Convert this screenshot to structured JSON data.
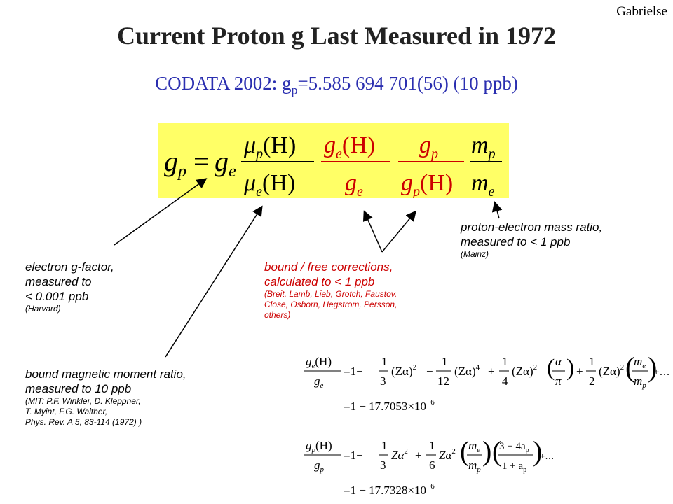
{
  "author": "Gabrielse",
  "title": "Current Proton g Last Measured in 1972",
  "codata": {
    "prefix": "CODATA 2002: g",
    "sub": "p",
    "value": "=5.585 694 701(56)  (10 ppb)"
  },
  "colors": {
    "codata": "#2b2fb0",
    "highlight": "#ffff66",
    "corrections": "#cc0000"
  },
  "main_equation": {
    "lhs": "g",
    "lhs_sub": "p",
    "equals": "=",
    "ge": "g",
    "ge_sub": "e",
    "mu": "μ",
    "paren_H": "(H)",
    "p": "p",
    "e": "e",
    "g": "g",
    "m": "m"
  },
  "annotations": {
    "electron": {
      "lines": [
        "electron g-factor,",
        "measured to",
        "< 0.001 ppb"
      ],
      "source": "(Harvard)"
    },
    "moment": {
      "lines": [
        "bound magnetic moment ratio,",
        "measured to 10 ppb"
      ],
      "refs": [
        "(MIT:  P.F. Winkler, D. Kleppner,",
        "T. Myint, F.G. Walther,",
        "Phys. Rev. A 5, 83-114 (1972)  )"
      ]
    },
    "corrections": {
      "lines": [
        "bound / free corrections,",
        "calculated to < 1 ppb"
      ],
      "refs": [
        "(Breit, Lamb, Lieb, Grotch, Faustov,",
        "Close, Osborn, Hegstrom, Persson,",
        "others)"
      ]
    },
    "mass": {
      "lines": [
        "proton-electron mass ratio,",
        "measured to < 1 ppb"
      ],
      "source": "(Mainz)"
    }
  },
  "expansion1": {
    "num": "g",
    "num_sub": "e",
    "num_arg": "(H)",
    "den": "g",
    "den_sub": "e",
    "terms": [
      "=1−",
      "1",
      "3",
      "(Zα)",
      "2",
      "−",
      "1",
      "12",
      "(Zα)",
      "4",
      "+",
      "1",
      "4",
      "(Zα)",
      "2",
      "α",
      "π",
      "+",
      "1",
      "2",
      "(Zα)",
      "2",
      "m",
      "e",
      "m",
      "p",
      "+…"
    ],
    "result": "=1 − 17.7053×10",
    "exp": "−6"
  },
  "expansion2": {
    "num": "g",
    "num_sub": "p",
    "num_arg": "(H)",
    "den": "g",
    "den_sub": "p",
    "terms": [
      "=1−",
      "1",
      "3",
      "Zα",
      "2",
      "+",
      "1",
      "6",
      "Zα",
      "2",
      "m",
      "e",
      "m",
      "p",
      "3 + 4a",
      "p",
      "1 + a",
      "p",
      "+…"
    ],
    "result": "=1 − 17.7328×10",
    "exp": "−6"
  }
}
